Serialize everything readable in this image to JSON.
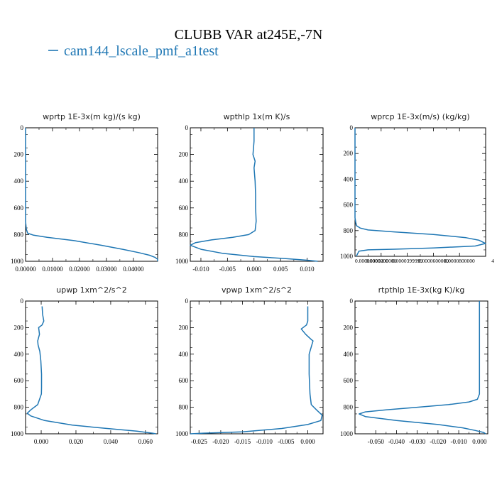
{
  "figure": {
    "title": "CLUBB VAR at245E,-7N",
    "legend_label": "cam144_lscale_pmf_a1test",
    "line_color": "#1f77b4"
  },
  "chart_data": [
    {
      "type": "line",
      "title": "wprtp  1E-3x(m kg)/(s kg)",
      "xlim": [
        0.0,
        0.049
      ],
      "ylim": [
        1000,
        0
      ],
      "xticks": [
        0.0,
        0.01,
        0.02,
        0.03,
        0.04
      ],
      "xtick_labels": [
        "0.00000",
        "0.01000",
        "0.02000",
        "0.03000",
        "0.04000"
      ],
      "yticks": [
        0,
        200,
        400,
        600,
        800,
        1000
      ],
      "ytick_labels": [
        "0",
        "200",
        "400",
        "600",
        "800",
        "1000"
      ],
      "series": [
        {
          "x": [
            0.0,
            0.0,
            0.0,
            0.0003,
            0.0008,
            0.003,
            0.008,
            0.018,
            0.028,
            0.036,
            0.042,
            0.046,
            0.048,
            0.049,
            0.049
          ],
          "y": [
            0,
            400,
            700,
            760,
            790,
            805,
            820,
            845,
            880,
            910,
            935,
            955,
            970,
            985,
            1000
          ]
        }
      ]
    },
    {
      "type": "line",
      "title": "wpthlp  1x(m K)/s",
      "xlim": [
        -0.012,
        0.013
      ],
      "ylim": [
        1000,
        0
      ],
      "xticks": [
        -0.01,
        -0.005,
        0.0,
        0.005,
        0.01
      ],
      "xtick_labels": [
        "-0.010",
        "-0.005",
        "0.000",
        "0.005",
        "0.010"
      ],
      "yticks": [
        0,
        200,
        400,
        600,
        800,
        1000
      ],
      "ytick_labels": [
        "0",
        "200",
        "400",
        "600",
        "800",
        "1000"
      ],
      "series": [
        {
          "x": [
            0.0,
            0.0,
            -0.0002,
            0.0002,
            0.0,
            0.0002,
            0.0003,
            0.0003,
            0.0004,
            0.0002,
            -0.001,
            -0.004,
            -0.008,
            -0.011,
            -0.012,
            -0.01,
            -0.006,
            0.0,
            0.006,
            0.01,
            0.012
          ],
          "y": [
            0,
            100,
            200,
            250,
            300,
            400,
            500,
            600,
            700,
            770,
            800,
            820,
            840,
            860,
            880,
            910,
            940,
            965,
            980,
            992,
            1000
          ]
        }
      ]
    },
    {
      "type": "line",
      "title": "wprcp  1E-3x(m/s) (kg/kg)",
      "xlim": [
        0.0,
        0.0001
      ],
      "ylim": [
        1000,
        0
      ],
      "xticks": [
        0.0,
        2e-05,
        4e-05,
        6e-05,
        8e-05
      ],
      "xtick_labels": [
        "0.00000000000",
        "0.0000200000",
        "0.0000399999",
        "0.0000600000",
        "0.0000800000"
      ],
      "extra_tick_label": "4",
      "yticks": [
        0,
        200,
        400,
        600,
        800,
        1000
      ],
      "ytick_labels": [
        "0",
        "200",
        "400",
        "600",
        "800",
        "1000"
      ],
      "series": [
        {
          "x": [
            0.0,
            0.0,
            0.0,
            1e-06,
            4e-06,
            1e-05,
            3e-05,
            6e-05,
            8.5e-05,
            9.5e-05,
            0.0001,
            9.2e-05,
            6e-05,
            3e-05,
            1e-05,
            3e-06,
            1e-06
          ],
          "y": [
            0,
            400,
            700,
            760,
            780,
            795,
            810,
            830,
            855,
            875,
            900,
            920,
            935,
            945,
            950,
            960,
            1000
          ]
        }
      ]
    },
    {
      "type": "line",
      "title": "upwp  1xm^2/s^2",
      "xlim": [
        -0.009,
        0.067
      ],
      "ylim": [
        1000,
        0
      ],
      "xticks": [
        0.0,
        0.02,
        0.04,
        0.06
      ],
      "xtick_labels": [
        "0.000",
        "0.020",
        "0.040",
        "0.060"
      ],
      "yticks": [
        0,
        200,
        400,
        600,
        800,
        1000
      ],
      "ytick_labels": [
        "0",
        "200",
        "400",
        "600",
        "800",
        "1000"
      ],
      "series": [
        {
          "x": [
            0.0005,
            0.0008,
            0.0015,
            0.0005,
            -0.0015,
            -0.001,
            -0.002,
            -0.0018,
            -0.0008,
            -0.0002,
            0.0002,
            0.0002,
            0.0001,
            -0.002,
            -0.006,
            -0.008,
            -0.006,
            0.002,
            0.018,
            0.038,
            0.055,
            0.064,
            0.066
          ],
          "y": [
            40,
            100,
            150,
            180,
            200,
            250,
            300,
            330,
            380,
            450,
            550,
            650,
            700,
            780,
            820,
            845,
            865,
            900,
            935,
            960,
            980,
            995,
            1000
          ]
        }
      ]
    },
    {
      "type": "line",
      "title": "vpwp  1xm^2/s^2",
      "xlim": [
        -0.027,
        0.0035
      ],
      "ylim": [
        1000,
        0
      ],
      "xticks": [
        -0.025,
        -0.02,
        -0.015,
        -0.01,
        -0.005,
        0.0
      ],
      "xtick_labels": [
        "-0.025",
        "-0.020",
        "-0.015",
        "-0.010",
        "-0.005",
        "0.000"
      ],
      "yticks": [
        0,
        200,
        400,
        600,
        800,
        1000
      ],
      "ytick_labels": [
        "0",
        "200",
        "400",
        "600",
        "800",
        "1000"
      ],
      "series": [
        {
          "x": [
            0.0,
            0.0,
            -0.0003,
            -0.0015,
            -0.0005,
            0.0008,
            0.0012,
            0.0003,
            0.0003,
            0.0005,
            0.0008,
            0.002,
            0.0033,
            0.003,
            0.0,
            -0.006,
            -0.015,
            -0.024,
            -0.027
          ],
          "y": [
            40,
            150,
            180,
            210,
            250,
            290,
            300,
            400,
            550,
            700,
            780,
            820,
            860,
            900,
            930,
            960,
            985,
            995,
            1000
          ]
        }
      ]
    },
    {
      "type": "line",
      "title": "rtpthlp  1E-3x(kg K)/kg",
      "xlim": [
        -0.06,
        0.004
      ],
      "ylim": [
        1000,
        0
      ],
      "xticks": [
        -0.05,
        -0.04,
        -0.03,
        -0.02,
        -0.01,
        0.0
      ],
      "xtick_labels": [
        "-0.050",
        "-0.040",
        "-0.030",
        "-0.020",
        "-0.010",
        "0.000"
      ],
      "yticks": [
        0,
        200,
        400,
        600,
        800,
        1000
      ],
      "ytick_labels": [
        "0",
        "200",
        "400",
        "600",
        "800",
        "1000"
      ],
      "series": [
        {
          "x": [
            0.0,
            0.0,
            0.0,
            -0.001,
            -0.005,
            -0.015,
            -0.03,
            -0.045,
            -0.055,
            -0.058,
            -0.055,
            -0.04,
            -0.02,
            -0.008,
            -0.002,
            0.002,
            0.003
          ],
          "y": [
            0,
            300,
            700,
            740,
            760,
            780,
            800,
            820,
            835,
            850,
            870,
            900,
            930,
            955,
            975,
            990,
            1000
          ]
        }
      ]
    }
  ]
}
